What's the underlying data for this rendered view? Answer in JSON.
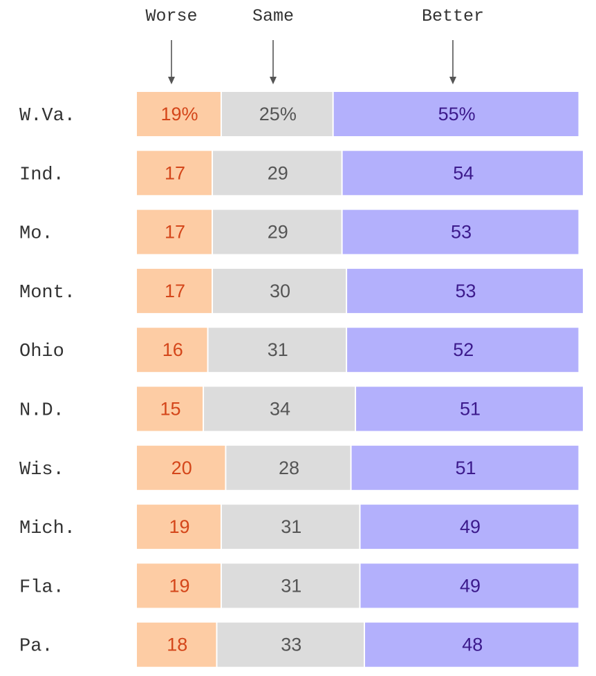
{
  "chart_data": {
    "type": "bar",
    "stacked": true,
    "orientation": "horizontal",
    "categories": [
      "W.Va.",
      "Ind.",
      "Mo.",
      "Mont.",
      "Ohio",
      "N.D.",
      "Wis.",
      "Mich.",
      "Fla.",
      "Pa."
    ],
    "column_headers": [
      "Worse",
      "Same",
      "Better"
    ],
    "series": [
      {
        "name": "Worse",
        "values": [
          19,
          17,
          17,
          17,
          16,
          15,
          20,
          19,
          19,
          18
        ],
        "color": "#fdcca4",
        "label_color": "#d4461a"
      },
      {
        "name": "Same",
        "values": [
          25,
          29,
          29,
          30,
          31,
          34,
          28,
          31,
          31,
          33
        ],
        "color": "#dcdcdc",
        "label_color": "#555555"
      },
      {
        "name": "Better",
        "values": [
          55,
          54,
          53,
          53,
          52,
          51,
          51,
          49,
          49,
          48
        ],
        "color": "#b3b0fc",
        "label_color": "#3c1a8c"
      }
    ],
    "value_labels": [
      [
        "19%",
        "25%",
        "55%"
      ],
      [
        "17",
        "29",
        "54"
      ],
      [
        "17",
        "29",
        "53"
      ],
      [
        "17",
        "30",
        "53"
      ],
      [
        "16",
        "31",
        "52"
      ],
      [
        "15",
        "34",
        "51"
      ],
      [
        "20",
        "28",
        "51"
      ],
      [
        "19",
        "31",
        "49"
      ],
      [
        "19",
        "31",
        "49"
      ],
      [
        "18",
        "33",
        "48"
      ]
    ],
    "xlim": [
      0,
      100
    ],
    "grid": false,
    "legend": "none"
  }
}
